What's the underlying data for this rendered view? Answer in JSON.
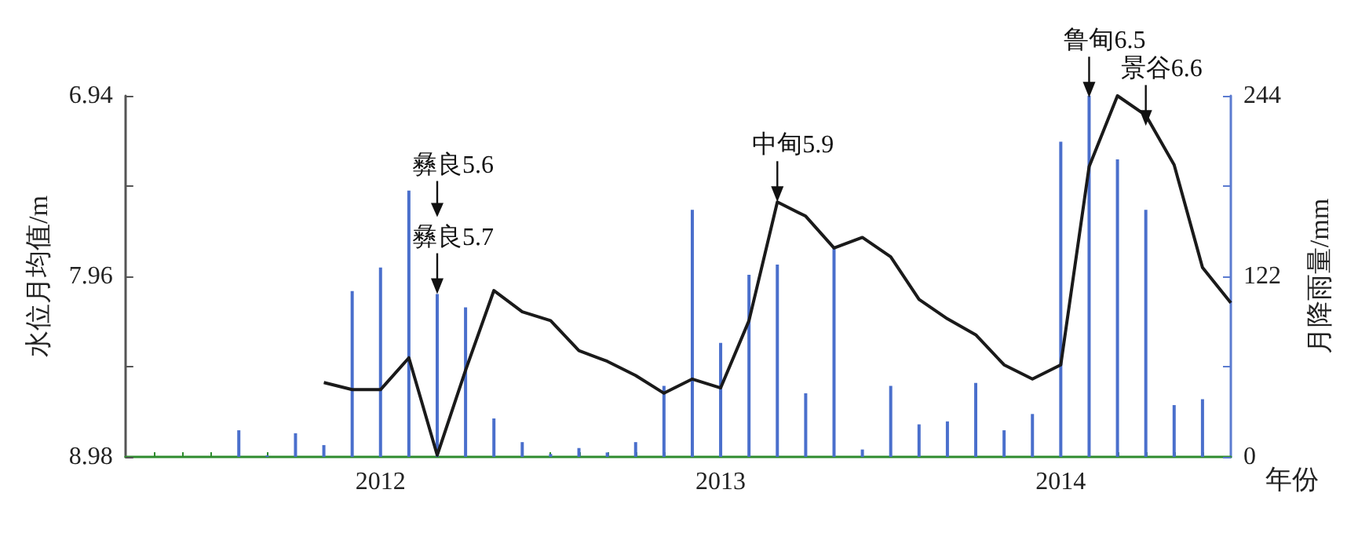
{
  "chart_data": {
    "type": "bar",
    "xlabel": "年份",
    "ylabel": "水位月均值/m",
    "y2label": "月降雨量/mm",
    "xlim": [
      "2011-04",
      "2014-07"
    ],
    "xticks": [
      {
        "value": "2011-05",
        "label": null
      },
      {
        "value": "2011-06",
        "label": null
      },
      {
        "value": "2011-07",
        "label": null
      },
      {
        "value": "2011-08",
        "label": null
      },
      {
        "value": "2011-09",
        "label": null
      },
      {
        "value": "2011-10",
        "label": null
      },
      {
        "value": "2011-11",
        "label": null
      },
      {
        "value": "2011-12",
        "label": null
      },
      {
        "value": "2012-01",
        "label": "2012"
      },
      {
        "value": "2012-02",
        "label": null
      },
      {
        "value": "2012-03",
        "label": null
      },
      {
        "value": "2012-04",
        "label": null
      },
      {
        "value": "2012-05",
        "label": null
      },
      {
        "value": "2012-06",
        "label": null
      },
      {
        "value": "2012-07",
        "label": null
      },
      {
        "value": "2012-08",
        "label": null
      },
      {
        "value": "2012-09",
        "label": null
      },
      {
        "value": "2012-10",
        "label": null
      },
      {
        "value": "2012-11",
        "label": null
      },
      {
        "value": "2012-12",
        "label": null
      },
      {
        "value": "2013-01",
        "label": "2013"
      },
      {
        "value": "2013-02",
        "label": null
      },
      {
        "value": "2013-03",
        "label": null
      },
      {
        "value": "2013-04",
        "label": null
      },
      {
        "value": "2013-05",
        "label": null
      },
      {
        "value": "2013-06",
        "label": null
      },
      {
        "value": "2013-07",
        "label": null
      },
      {
        "value": "2013-08",
        "label": null
      },
      {
        "value": "2013-09",
        "label": null
      },
      {
        "value": "2013-10",
        "label": null
      },
      {
        "value": "2013-11",
        "label": null
      },
      {
        "value": "2013-12",
        "label": null
      },
      {
        "value": "2014-01",
        "label": "2014"
      },
      {
        "value": "2014-02",
        "label": null
      },
      {
        "value": "2014-03",
        "label": null
      },
      {
        "value": "2014-04",
        "label": null
      },
      {
        "value": "2014-05",
        "label": null
      },
      {
        "value": "2014-06",
        "label": null
      }
    ],
    "ylim": [
      8.98,
      6.94
    ],
    "yticks": [
      6.94,
      {
        "value": 7.45,
        "label": null
      },
      7.96,
      {
        "value": 8.47,
        "label": null
      },
      8.98
    ],
    "y2lim": [
      0,
      244
    ],
    "y2ticks": [
      0,
      {
        "value": 61,
        "label": null
      },
      122,
      {
        "value": 183,
        "label": null
      },
      244
    ],
    "grid": false,
    "series": [
      {
        "axis": "y2",
        "color": "#4a6fcc",
        "x": [
          "2011-08",
          "2011-09",
          "2011-10",
          "2011-11",
          "2011-12",
          "2012-01",
          "2012-02",
          "2012-03",
          "2012-04",
          "2012-05",
          "2012-06",
          "2012-07",
          "2012-08",
          "2012-09",
          "2012-10",
          "2012-11",
          "2012-12",
          "2013-01",
          "2013-02",
          "2013-03",
          "2013-04",
          "2013-05",
          "2013-06",
          "2013-07",
          "2013-08",
          "2013-09",
          "2013-10",
          "2013-11",
          "2013-12",
          "2014-01",
          "2014-02",
          "2014-03",
          "2014-04",
          "2014-05",
          "2014-06"
        ],
        "values": [
          18,
          1,
          16,
          8,
          112,
          128,
          180,
          110,
          101,
          26,
          10,
          2,
          6,
          3,
          10,
          48,
          167,
          77,
          123,
          130,
          43,
          141,
          5,
          48,
          22,
          24,
          50,
          18,
          29,
          213,
          244,
          201,
          167,
          35,
          39
        ]
      },
      {
        "type": "line",
        "axis": "y",
        "color": "#1a1a1a",
        "marker": "none",
        "line_style": "solid",
        "x": [
          "2011-11",
          "2011-12",
          "2012-01",
          "2012-02",
          "2012-03",
          "2012-04",
          "2012-05",
          "2012-06",
          "2012-07",
          "2012-08",
          "2012-09",
          "2012-10",
          "2012-11",
          "2012-12",
          "2013-01",
          "2013-02",
          "2013-03",
          "2013-04",
          "2013-05",
          "2013-06",
          "2013-07",
          "2013-08",
          "2013-09",
          "2013-10",
          "2013-11",
          "2013-12",
          "2014-01",
          "2014-02",
          "2014-03",
          "2014-04",
          "2014-05",
          "2014-06",
          "2014-07"
        ],
        "values": [
          8.56,
          8.6,
          8.6,
          8.42,
          8.97,
          8.49,
          8.04,
          8.16,
          8.21,
          8.38,
          8.44,
          8.52,
          8.62,
          8.54,
          8.59,
          8.21,
          7.54,
          7.62,
          7.8,
          7.74,
          7.85,
          8.09,
          8.2,
          8.29,
          8.46,
          8.54,
          8.46,
          7.34,
          6.94,
          7.05,
          7.33,
          7.91,
          8.11
        ]
      }
    ],
    "annotations": [
      "彝良5.6",
      {
        "text": "彝良5.7",
        "x": "2012-03",
        "y": 8.06
      },
      {
        "text": "中甸5.9",
        "x": "2013-03",
        "y": 7.54
      },
      {
        "text": "鲁甸6.5",
        "x": "2014-02",
        "y": 6.95
      },
      {
        "text": "景谷6.6",
        "x": "2014-04",
        "y": 7.11
      }
    ]
  }
}
